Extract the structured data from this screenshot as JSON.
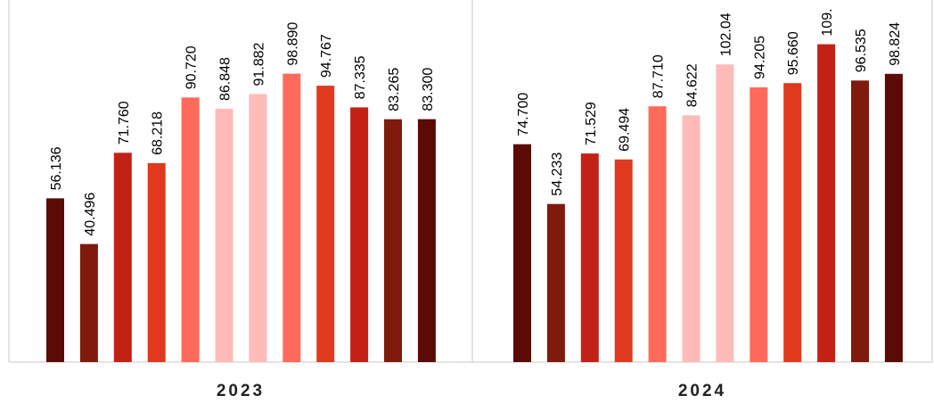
{
  "chart_data": {
    "type": "bar",
    "grid": false,
    "legend": "none",
    "ylim": [
      0,
      112
    ],
    "groups": [
      {
        "label": "2023",
        "values": [
          56.136,
          40.496,
          71.76,
          68.218,
          90.72,
          86.848,
          91.882,
          98.89,
          94.767,
          87.335,
          83.265,
          83.3
        ],
        "labels": [
          "56.136",
          "40.496",
          "71.760",
          "68.218",
          "90.720",
          "86.848",
          "91.882",
          "98.890",
          "94.767",
          "87.335",
          "83.265",
          "83.300"
        ]
      },
      {
        "label": "2024",
        "values": [
          74.7,
          54.233,
          71.529,
          69.494,
          87.71,
          84.622,
          102.04,
          94.205,
          95.66,
          109.0,
          96.535,
          98.824
        ],
        "labels": [
          "74.700",
          "54.233",
          "71.529",
          "69.494",
          "87.710",
          "84.622",
          "102.04",
          "94.205",
          "95.660",
          "109.",
          "96.535",
          "98.824"
        ]
      }
    ],
    "bar_colors": [
      "#5c0a06",
      "#7f1a0d",
      "#c42116",
      "#e03a1e",
      "#ff6a5a",
      "#ffbbb8",
      "#ffbbb8",
      "#ff6a5a",
      "#e03a1e",
      "#c42116",
      "#7f1a0d",
      "#5c0a06"
    ],
    "axis_color": "#c8c8c8"
  }
}
